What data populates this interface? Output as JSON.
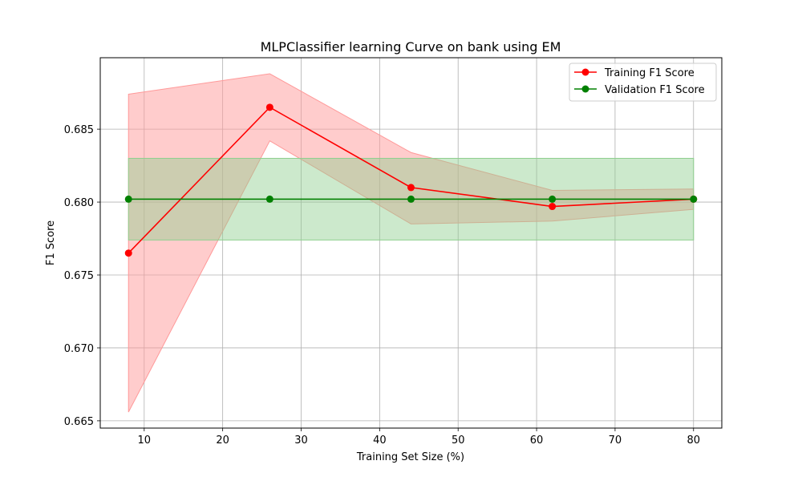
{
  "chart_data": {
    "type": "line",
    "title": "MLPClassifier learning Curve on bank using EM",
    "xlabel": "Training Set Size (%)",
    "ylabel": "F1 Score",
    "x": [
      8,
      26,
      44,
      62,
      80
    ],
    "xlim": [
      4.4,
      83.6
    ],
    "ylim": [
      0.6645,
      0.6899
    ],
    "xticks": [
      10,
      20,
      30,
      40,
      50,
      60,
      70,
      80
    ],
    "yticks": [
      0.665,
      0.67,
      0.675,
      0.68,
      0.685
    ],
    "grid": true,
    "legend_position": "top-right",
    "series": [
      {
        "name": "Training F1 Score",
        "color": "#ff0000",
        "band_color": "#ff9999",
        "values": [
          0.6765,
          0.6865,
          0.681,
          0.6797,
          0.6802
        ],
        "upper": [
          0.6874,
          0.6888,
          0.6834,
          0.6808,
          0.6809
        ],
        "lower": [
          0.6656,
          0.6842,
          0.6785,
          0.6787,
          0.6795
        ]
      },
      {
        "name": "Validation F1 Score",
        "color": "#008000",
        "band_color": "#8fcf8f",
        "values": [
          0.6802,
          0.6802,
          0.6802,
          0.6802,
          0.6802
        ],
        "upper": [
          0.683,
          0.683,
          0.683,
          0.683,
          0.683
        ],
        "lower": [
          0.6774,
          0.6774,
          0.6774,
          0.6774,
          0.6774
        ]
      }
    ]
  }
}
